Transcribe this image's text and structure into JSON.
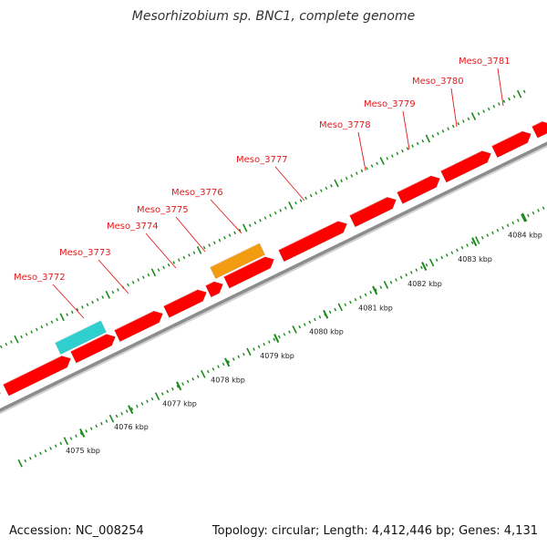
{
  "title": "Mesorhizobium sp. BNC1, complete genome",
  "footer": {
    "accession": "Accession: NC_008254",
    "summary": "Topology: circular; Length: 4,412,446 bp; Genes: 4,131"
  },
  "colors": {
    "forward_gene": "#ff0000",
    "reverse_gene": "#ff0000",
    "rna_gene": "#2fcfcf",
    "other_gene": "#f39c12",
    "backbone": "#8c8c8c",
    "tick": "#1a8a1a",
    "label": "#e41a1c"
  },
  "ruler": {
    "unit": "kbp",
    "labels": [
      "4075 kbp",
      "4076 kbp",
      "4077 kbp",
      "4078 kbp",
      "4079 kbp",
      "4080 kbp",
      "4081 kbp",
      "4082 kbp",
      "4083 kbp",
      "4084 kbp"
    ],
    "values_kbp": [
      4075,
      4076,
      4077,
      4078,
      4079,
      4080,
      4081,
      4082,
      4083,
      4084
    ]
  },
  "gene_labels": [
    "Meso_3772",
    "Meso_3773",
    "Meso_3774",
    "Meso_3775",
    "Meso_3776",
    "Meso_3777",
    "Meso_3778",
    "Meso_3779",
    "Meso_3780",
    "Meso_3781"
  ]
}
